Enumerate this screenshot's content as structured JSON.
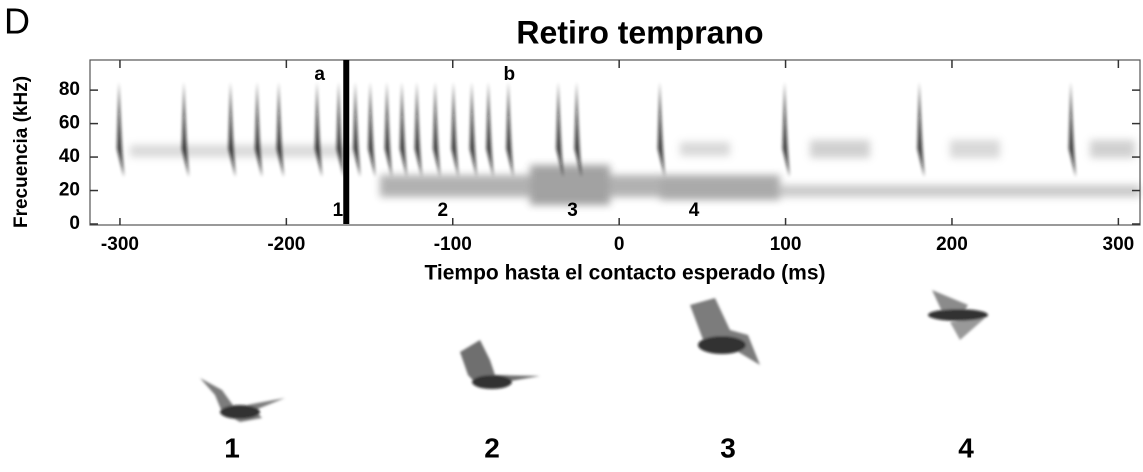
{
  "chart_data": {
    "type": "spectrogram",
    "panel": "D",
    "title": "Retiro temprano",
    "xlabel": "Tiempo hasta el contacto esperado (ms)",
    "ylabel": "Frecuencia (kHz)",
    "xlim": [
      -318,
      313
    ],
    "ylim": [
      0,
      98
    ],
    "xticks": [
      -300,
      -200,
      -100,
      0,
      100,
      200,
      300
    ],
    "yticks": [
      0,
      20,
      40,
      60,
      80
    ],
    "calls": [
      -300,
      -261,
      -233,
      -217,
      -204,
      -181,
      -168,
      -158,
      -149,
      -139,
      -130,
      -121,
      -110,
      -99,
      -88,
      -78,
      -66,
      -36,
      -25,
      25,
      100,
      181,
      272
    ],
    "call_color": "#111111",
    "annotations": [
      {
        "text": "a",
        "x": -180
      },
      {
        "text": "b",
        "x": -66
      },
      {
        "text": "1",
        "x": -169
      },
      {
        "text": "2",
        "x": -106
      },
      {
        "text": "3",
        "x": -28
      },
      {
        "text": "4",
        "x": 45
      }
    ],
    "marker_line": -164,
    "frame_labels": [
      "1",
      "2",
      "3",
      "4"
    ]
  }
}
